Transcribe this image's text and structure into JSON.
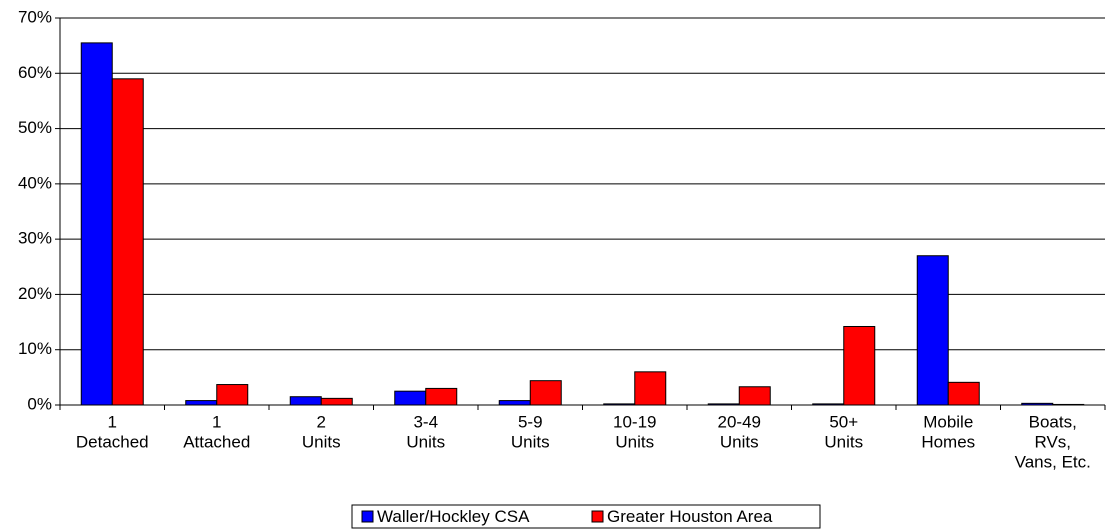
{
  "chart_data": {
    "type": "bar",
    "categories": [
      [
        "1",
        "Detached"
      ],
      [
        "1",
        "Attached"
      ],
      [
        "2",
        "Units"
      ],
      [
        "3-4",
        "Units"
      ],
      [
        "5-9",
        "Units"
      ],
      [
        "10-19",
        "Units"
      ],
      [
        "20-49",
        "Units"
      ],
      [
        "50+",
        "Units"
      ],
      [
        "Mobile",
        "Homes"
      ],
      [
        "Boats,",
        "RVs,",
        "Vans, Etc."
      ]
    ],
    "series": [
      {
        "name": "Waller/Hockley CSA",
        "color": "#0000ff",
        "values": [
          65.5,
          0.8,
          1.5,
          2.5,
          0.8,
          0.2,
          0.2,
          0.2,
          27,
          0.3
        ]
      },
      {
        "name": "Greater Houston Area",
        "color": "#ff0000",
        "values": [
          59,
          3.7,
          1.2,
          3.0,
          4.4,
          6.0,
          3.3,
          14.2,
          4.1,
          0.1
        ]
      }
    ],
    "ylim": [
      0,
      70
    ],
    "yticks": [
      {
        "value": 0,
        "label": "0%"
      },
      {
        "value": 10,
        "label": "10%"
      },
      {
        "value": 20,
        "label": "20%"
      },
      {
        "value": 30,
        "label": "30%"
      },
      {
        "value": 40,
        "label": "40%"
      },
      {
        "value": 50,
        "label": "50%"
      },
      {
        "value": 60,
        "label": "60%"
      },
      {
        "value": 70,
        "label": "70%"
      }
    ],
    "grid": true,
    "legend": "bottom"
  }
}
